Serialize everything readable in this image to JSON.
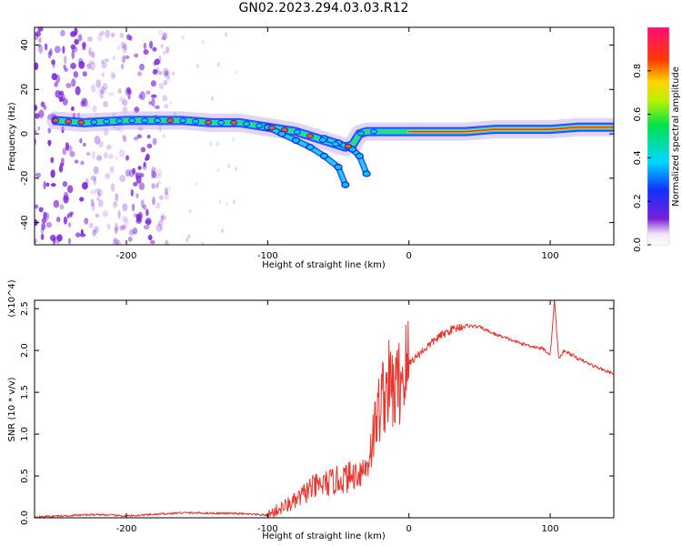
{
  "page": {
    "title": "GN02.2023.294.03.03.R12"
  },
  "chart_data": [
    {
      "type": "heatmap",
      "title": "GN02.2023.294.03.03.R12",
      "xlabel": "Height of straight line (km)",
      "ylabel": "Frequency (Hz)",
      "xlim": [
        -265,
        145
      ],
      "ylim": [
        -50,
        48
      ],
      "xticks": [
        -200,
        -100,
        0,
        100
      ],
      "yticks": [
        -40,
        -20,
        0,
        20,
        40
      ],
      "colorbar": {
        "label": "Normalized spectral amplitude",
        "range": [
          0,
          1
        ],
        "ticks": [
          0.0,
          0.2,
          0.4,
          0.6,
          0.8
        ],
        "colormap": "rainbow (purple-blue-cyan-green-yellow-red-magenta)"
      },
      "ridge": {
        "x": [
          -250,
          -230,
          -200,
          -180,
          -160,
          -140,
          -120,
          -100,
          -90,
          -80,
          -70,
          -60,
          -50,
          -45,
          -40,
          -35,
          -30,
          -20,
          -10,
          0,
          20,
          40,
          60,
          80,
          100,
          120,
          145
        ],
        "y": [
          6,
          5,
          6,
          6,
          6,
          5,
          5,
          3,
          2,
          1,
          -1,
          -3,
          -5,
          -6,
          -5,
          0,
          1,
          1,
          1,
          1,
          1,
          1,
          2,
          2,
          2,
          3,
          3
        ]
      },
      "branches": [
        {
          "x": [
            -100,
            -90,
            -80,
            -70,
            -60,
            -50,
            -45
          ],
          "y": [
            3,
            0,
            -3,
            -6,
            -10,
            -15,
            -23
          ]
        },
        {
          "x": [
            -60,
            -50,
            -40,
            -35,
            -30
          ],
          "y": [
            -2,
            -4,
            -7,
            -10,
            -18
          ]
        }
      ]
    },
    {
      "type": "line",
      "xlabel": "Height of straight line (km)",
      "ylabel": "SNR (10 * v/v)",
      "y_multiplier": "(x10^4)",
      "xlim": [
        -265,
        145
      ],
      "ylim": [
        0,
        2.6
      ],
      "xticks": [
        -200,
        -100,
        0,
        100
      ],
      "yticks": [
        0.0,
        0.5,
        1.0,
        1.5,
        2.0,
        2.5
      ],
      "series": [
        {
          "color": "#e8362e",
          "x": [
            -265,
            -220,
            -200,
            -160,
            -120,
            -100,
            -90,
            -80,
            -70,
            -60,
            -50,
            -40,
            -35,
            -30,
            -25,
            -20,
            -15,
            -10,
            -5,
            0,
            10,
            20,
            30,
            40,
            50,
            60,
            80,
            95,
            100,
            103,
            106,
            110,
            120,
            130,
            145
          ],
          "y": [
            0.01,
            0.04,
            0.02,
            0.06,
            0.05,
            0.03,
            0.12,
            0.2,
            0.35,
            0.4,
            0.45,
            0.5,
            0.55,
            0.6,
            1.0,
            1.4,
            1.6,
            1.5,
            1.7,
            1.85,
            2.0,
            2.15,
            2.25,
            2.3,
            2.28,
            2.2,
            2.08,
            2.02,
            1.95,
            2.6,
            1.9,
            2.0,
            1.9,
            1.82,
            1.72
          ]
        }
      ]
    }
  ]
}
